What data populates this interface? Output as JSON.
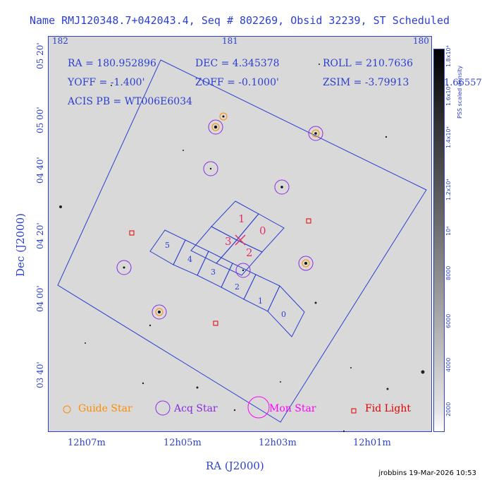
{
  "title": "Name RMJ120348.7+042043.4, Seq # 802269, Obsid 32239, ST Scheduled",
  "info": {
    "ra": "RA = 180.952896",
    "dec": "DEC = 4.345378",
    "roll": "ROLL = 210.7636",
    "yoff": "YOFF =  -1.400'",
    "zoff": "ZOFF = -0.1000'",
    "zsim": "ZSIM = -3.79913",
    "acis": "ACIS PB = WT006E6034"
  },
  "top_ticks": [
    "182",
    "181",
    "180"
  ],
  "left_ticks": [
    "05 20'",
    "05 00'",
    "04 40'",
    "04 20'",
    "04 00'",
    "03 40'"
  ],
  "bottom_ticks": [
    "12h07m",
    "12h05m",
    "12h03m",
    "12h01m"
  ],
  "xlabel": "RA (J2000)",
  "ylabel": "Dec (J2000)",
  "colorbar": {
    "label": "PSS scaled density",
    "ticks": [
      "2000",
      "4000",
      "6000",
      "8000",
      "10⁴",
      "1.2x10⁴",
      "1.4x10⁴",
      "1.6x10⁴",
      "1.8x10⁴"
    ],
    "top_value": "1.66557"
  },
  "ccd_labels": {
    "i": [
      "1",
      "0",
      "3",
      "2"
    ],
    "s": [
      "5",
      "4",
      "3",
      "2",
      "1",
      "0"
    ]
  },
  "legend": {
    "guide": "Guide Star",
    "acq": "Acq Star",
    "mon": "Mon Star",
    "fid": "Fid Light"
  },
  "colors": {
    "blue": "#2a3fd0",
    "guide": "#ff8c00",
    "acq": "#8a2be2",
    "mon": "#ff00ff",
    "fid": "#e00000",
    "pointing": "#e0306a"
  },
  "footer": "jrobbins 19-Mar-2026 10:53"
}
